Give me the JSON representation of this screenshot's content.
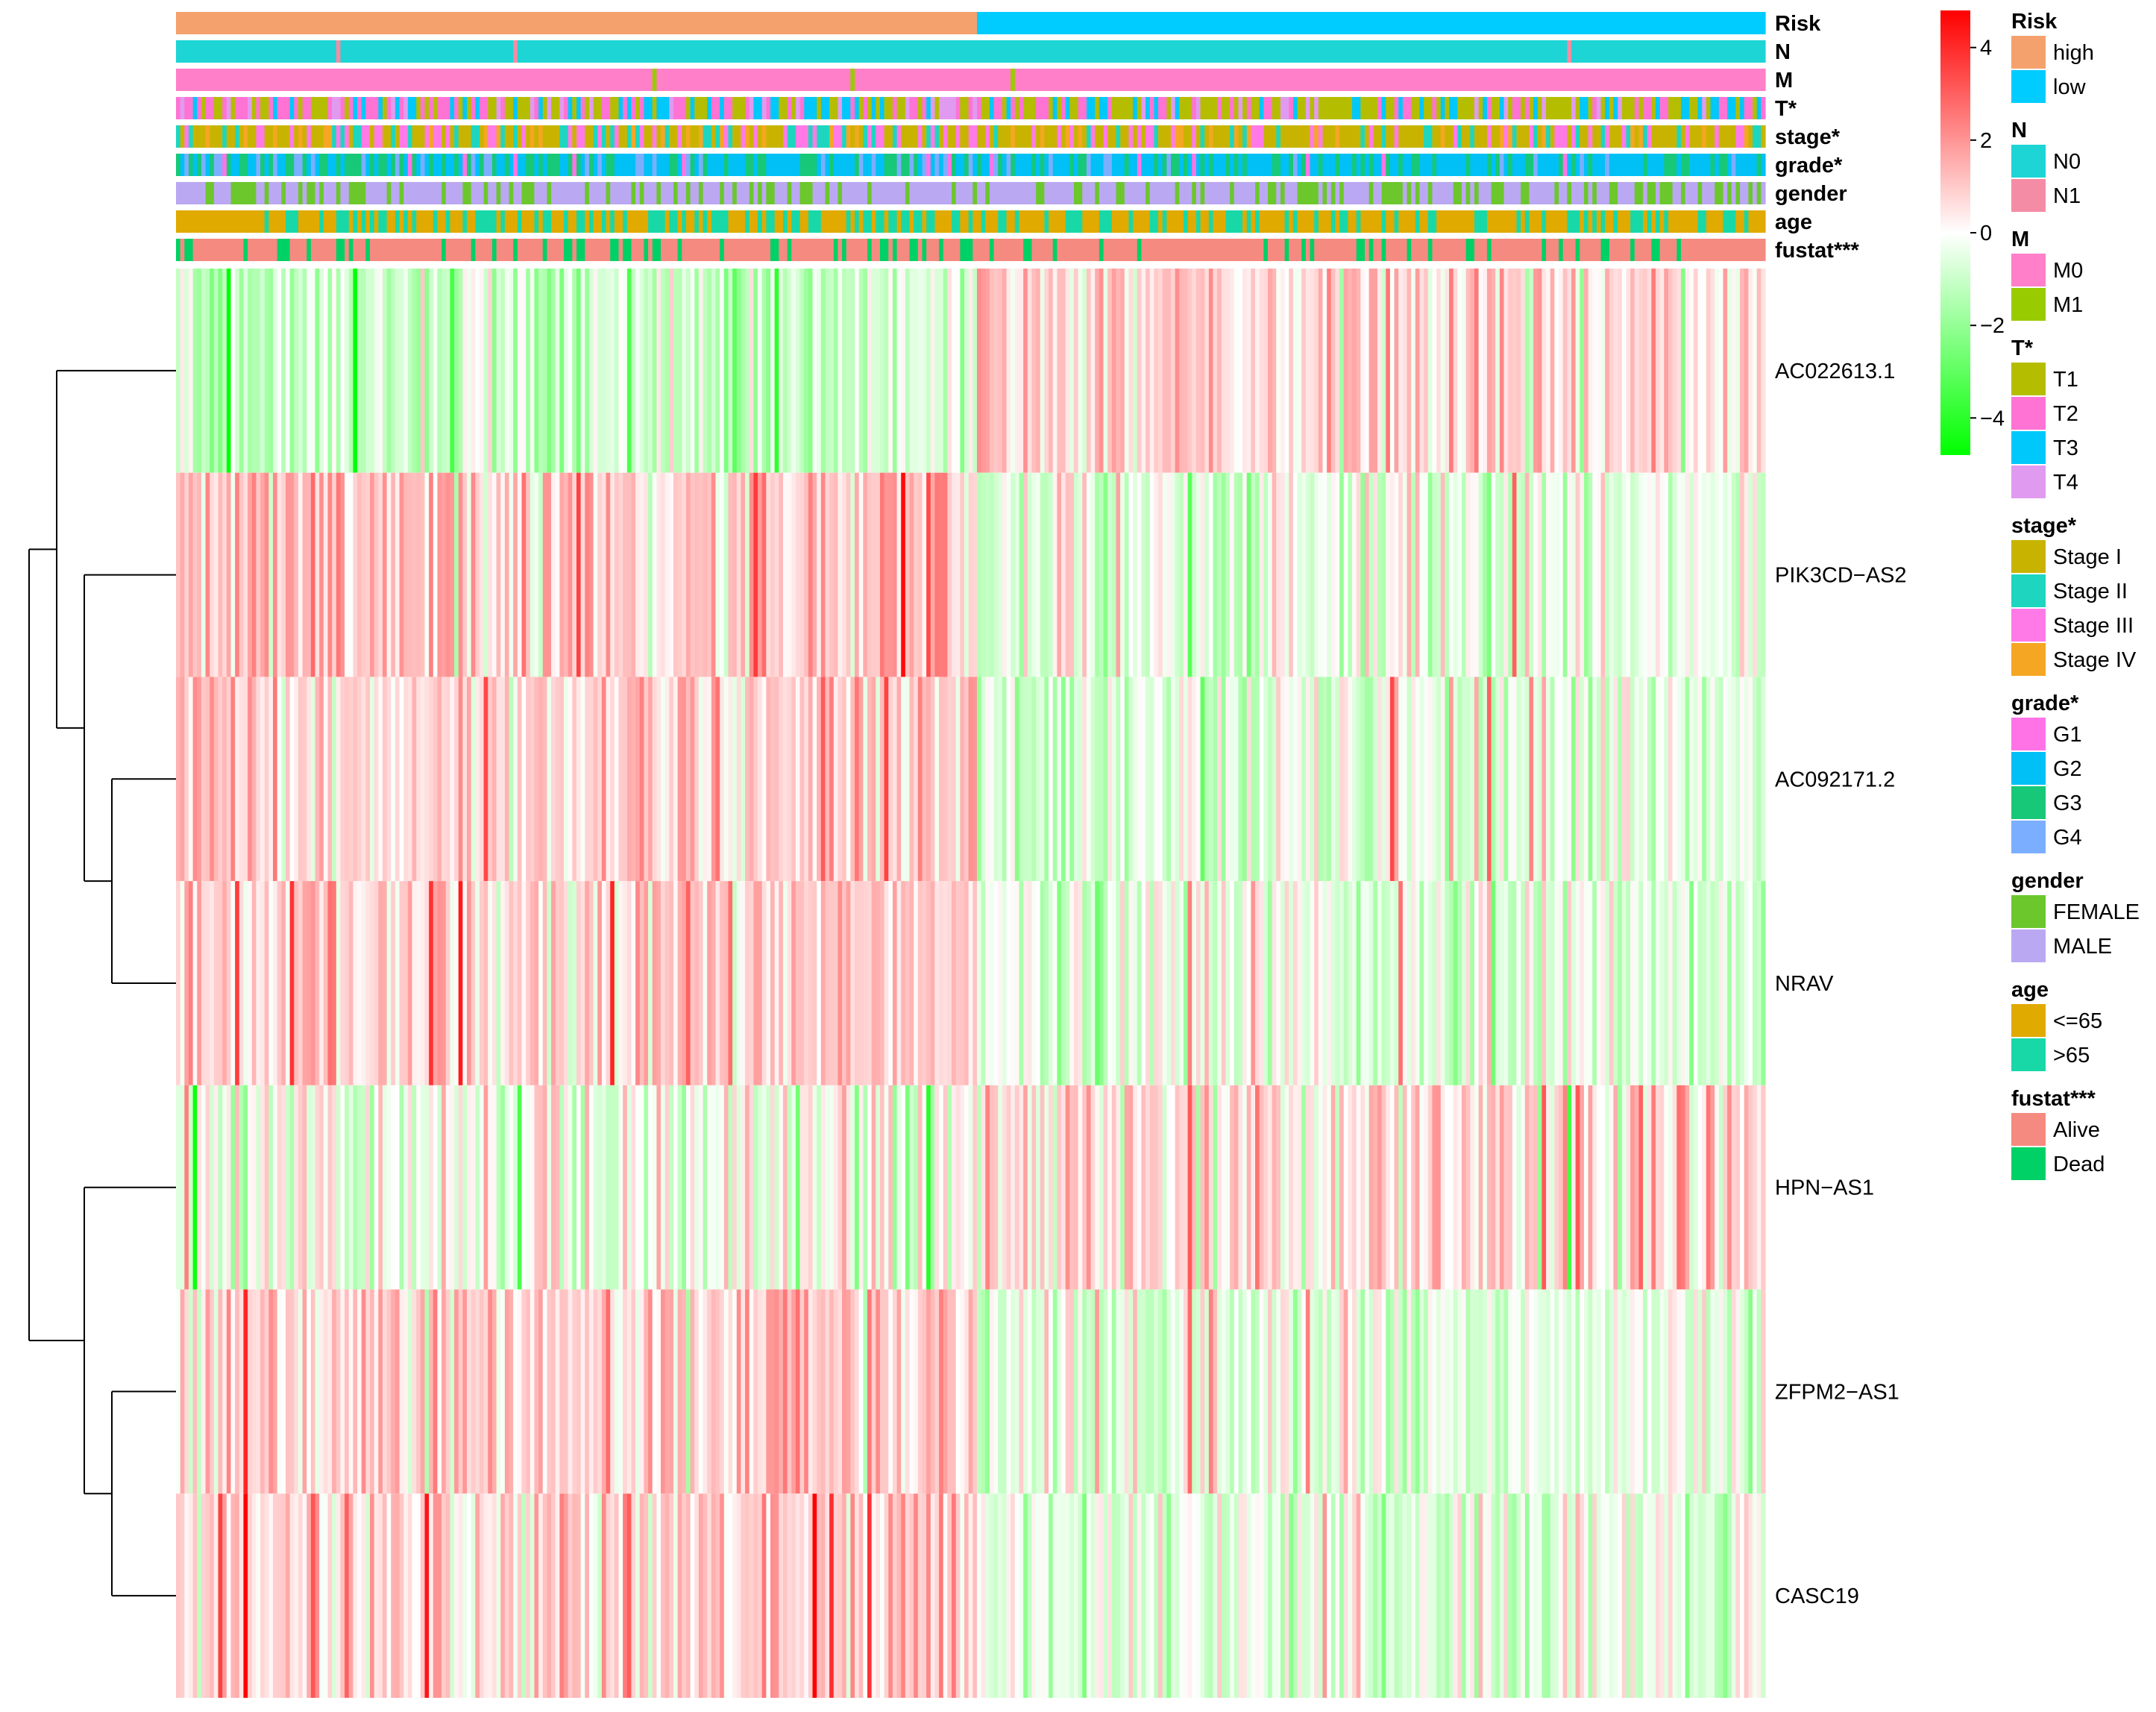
{
  "chart_data": {
    "type": "heatmap",
    "title": "",
    "n_samples": 377,
    "genes": [
      "AC022613.1",
      "PIK3CD−AS2",
      "AC092171.2",
      "NRAV",
      "HPN−AS1",
      "ZFPM2−AS1",
      "CASC19"
    ],
    "value_range": [
      -4.8,
      4.8
    ],
    "colorbar": {
      "ticks": [
        4,
        2,
        0,
        -2,
        -4
      ],
      "tick_labels": [
        "4",
        "2",
        "0",
        "−2",
        "−4"
      ],
      "colors": [
        "#00ff00",
        "#ffffff",
        "#ff0000"
      ]
    },
    "risk_split_sample": 190,
    "gene_patterns": [
      {
        "gene": "AC022613.1",
        "high_mean": -0.9,
        "low_mean": 0.75,
        "spread": 0.8
      },
      {
        "gene": "PIK3CD−AS2",
        "high_mean": 0.9,
        "low_mean": -0.55,
        "spread": 0.9
      },
      {
        "gene": "AC092171.2",
        "high_mean": 0.9,
        "low_mean": -0.55,
        "spread": 0.8
      },
      {
        "gene": "NRAV",
        "high_mean": 0.8,
        "low_mean": -0.5,
        "spread": 0.8
      },
      {
        "gene": "HPN−AS1",
        "high_mean": -0.2,
        "low_mean": 0.55,
        "spread": 1.0
      },
      {
        "gene": "ZFPM2−AS1",
        "high_mean": 0.9,
        "low_mean": -0.5,
        "spread": 0.8
      },
      {
        "gene": "CASC19",
        "high_mean": 0.85,
        "low_mean": -0.45,
        "spread": 0.8
      }
    ],
    "dendrogram_merges": [
      {
        "left": "PIK3CD−AS2",
        "right": "AC092171.2 + NRAV",
        "level": 3
      },
      {
        "left": "AC092171.2",
        "right": "NRAV",
        "level": 2
      },
      {
        "left": "AC022613.1",
        "right": "PIK3CD−AS2 cluster",
        "level": 4
      },
      {
        "left": "ZFPM2−AS1",
        "right": "CASC19",
        "level": 2
      },
      {
        "left": "HPN−AS1",
        "right": "ZFPM2−AS1 + CASC19",
        "level": 3
      },
      {
        "left": "upper cluster",
        "right": "lower cluster",
        "level": 5
      }
    ],
    "annotation_tracks": [
      {
        "name": "Risk",
        "label": "Risk"
      },
      {
        "name": "N",
        "label": "N"
      },
      {
        "name": "M",
        "label": "M"
      },
      {
        "name": "T",
        "label": "T*"
      },
      {
        "name": "stage",
        "label": "stage*"
      },
      {
        "name": "grade",
        "label": "grade*"
      },
      {
        "name": "gender",
        "label": "gender"
      },
      {
        "name": "age",
        "label": "age"
      },
      {
        "name": "fustat",
        "label": "fustat***"
      }
    ],
    "legend": [
      {
        "title": "Risk",
        "items": [
          {
            "label": "high",
            "color": "#F4A16E"
          },
          {
            "label": "low",
            "color": "#00CCFF"
          }
        ]
      },
      {
        "title": "N",
        "items": [
          {
            "label": "N0",
            "color": "#1DD5D5"
          },
          {
            "label": "N1",
            "color": "#F58CA5"
          }
        ]
      },
      {
        "title": "M",
        "items": [
          {
            "label": "M0",
            "color": "#FF7FC8"
          },
          {
            "label": "M1",
            "color": "#99CC00"
          }
        ]
      },
      {
        "title": "T*",
        "items": [
          {
            "label": "T1",
            "color": "#B5BD00"
          },
          {
            "label": "T2",
            "color": "#FF73D4"
          },
          {
            "label": "T3",
            "color": "#00C8FA"
          },
          {
            "label": "T4",
            "color": "#E09BF0"
          }
        ]
      },
      {
        "title": "stage*",
        "items": [
          {
            "label": "Stage I",
            "color": "#C8B400"
          },
          {
            "label": "Stage II",
            "color": "#1ED6C0"
          },
          {
            "label": "Stage III",
            "color": "#FF7AE6"
          },
          {
            "label": "Stage IV",
            "color": "#F5A623"
          }
        ]
      },
      {
        "title": "grade*",
        "items": [
          {
            "label": "G1",
            "color": "#FF73E6"
          },
          {
            "label": "G2",
            "color": "#00C0F5"
          },
          {
            "label": "G3",
            "color": "#17C878"
          },
          {
            "label": "G4",
            "color": "#7BAEFF"
          }
        ]
      },
      {
        "title": "gender",
        "items": [
          {
            "label": "FEMALE",
            "color": "#6CC72C"
          },
          {
            "label": "MALE",
            "color": "#BBA8F2"
          }
        ]
      },
      {
        "title": "age",
        "items": [
          {
            "label": "<=65",
            "color": "#E0AA00"
          },
          {
            "label": ">65",
            "color": "#19D8A8"
          }
        ]
      },
      {
        "title": "fustat***",
        "items": [
          {
            "label": "Alive",
            "color": "#F58A80"
          },
          {
            "label": "Dead",
            "color": "#00D166"
          }
        ]
      }
    ],
    "track_patterns": {
      "Risk": [
        {
          "from": 0,
          "to": 190,
          "category": "high"
        },
        {
          "from": 190,
          "to": 377,
          "category": "low"
        }
      ],
      "N": {
        "base": "N0",
        "exceptions": [
          {
            "at": 38,
            "category": "N1"
          },
          {
            "at": 80,
            "category": "N1"
          },
          {
            "at": 330,
            "category": "N1"
          }
        ]
      },
      "M": {
        "base": "M0",
        "exceptions": [
          {
            "at": 113,
            "category": "M1"
          },
          {
            "at": 160,
            "category": "M1"
          },
          {
            "at": 198,
            "category": "M1"
          }
        ]
      },
      "T": {
        "weights_high": [
          0.35,
          0.3,
          0.25,
          0.1
        ],
        "weights_low": [
          0.45,
          0.25,
          0.2,
          0.1
        ]
      },
      "stage": {
        "weights_high": [
          0.4,
          0.2,
          0.3,
          0.1
        ],
        "weights_low": [
          0.55,
          0.15,
          0.2,
          0.1
        ]
      },
      "grade": {
        "weights_high": [
          0.05,
          0.45,
          0.35,
          0.15
        ],
        "weights_low": [
          0.05,
          0.6,
          0.3,
          0.05
        ]
      },
      "gender": {
        "weights_high": [
          0.35,
          0.65
        ],
        "weights_low": [
          0.3,
          0.7
        ]
      },
      "age": {
        "weights_high": [
          0.6,
          0.4
        ],
        "weights_low": [
          0.7,
          0.3
        ]
      },
      "fustat": {
        "weights_high": [
          0.72,
          0.28
        ],
        "weights_low": [
          0.88,
          0.12
        ]
      }
    }
  }
}
